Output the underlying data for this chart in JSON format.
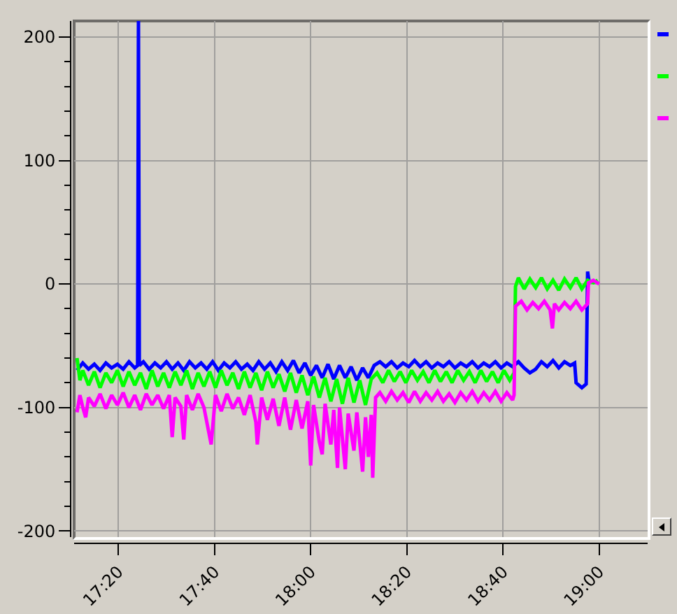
{
  "chart_data": {
    "type": "line",
    "xlim": [
      17.18,
      19.168
    ],
    "xticks": [
      {
        "value": 17.333,
        "label": "17:20"
      },
      {
        "value": 17.667,
        "label": "17:40"
      },
      {
        "value": 18,
        "label": "18:00"
      },
      {
        "value": 18.333,
        "label": "18:20"
      },
      {
        "value": 18.667,
        "label": "18:40"
      },
      {
        "value": 19,
        "label": "19:00"
      }
    ],
    "ylim": [
      -205,
      213
    ],
    "yticks": [
      -200,
      {
        "value": -180,
        "label": null
      },
      {
        "value": -160,
        "label": null
      },
      {
        "value": -140,
        "label": null
      },
      {
        "value": -120,
        "label": null
      },
      -100,
      {
        "value": -80,
        "label": null
      },
      {
        "value": -60,
        "label": null
      },
      {
        "value": -40,
        "label": null
      },
      {
        "value": -20,
        "label": null
      },
      0,
      {
        "value": 20,
        "label": null
      },
      {
        "value": 40,
        "label": null
      },
      {
        "value": 60,
        "label": null
      },
      {
        "value": 80,
        "label": null
      },
      100,
      {
        "value": 120,
        "label": null
      },
      {
        "value": 140,
        "label": null
      },
      {
        "value": 160,
        "label": null
      },
      {
        "value": 180,
        "label": null
      },
      200
    ],
    "grid": true,
    "series": [
      {
        "color": "#0000ff",
        "x": [
          17.19,
          17.21,
          17.23,
          17.25,
          17.27,
          17.29,
          17.31,
          17.33,
          17.35,
          17.37,
          17.39,
          17.4,
          17.403,
          17.406,
          17.42,
          17.44,
          17.46,
          17.48,
          17.5,
          17.52,
          17.54,
          17.56,
          17.58,
          17.6,
          17.62,
          17.64,
          17.66,
          17.68,
          17.7,
          17.72,
          17.74,
          17.76,
          17.78,
          17.8,
          17.82,
          17.84,
          17.86,
          17.88,
          17.9,
          17.92,
          17.94,
          17.96,
          17.98,
          18,
          18.02,
          18.04,
          18.06,
          18.08,
          18.1,
          18.12,
          18.14,
          18.16,
          18.18,
          18.2,
          18.22,
          18.24,
          18.26,
          18.28,
          18.3,
          18.32,
          18.34,
          18.36,
          18.38,
          18.4,
          18.42,
          18.44,
          18.46,
          18.48,
          18.5,
          18.52,
          18.54,
          18.56,
          18.58,
          18.6,
          18.62,
          18.64,
          18.66,
          18.68,
          18.7,
          18.72,
          18.74,
          18.76,
          18.78,
          18.8,
          18.82,
          18.84,
          18.86,
          18.88,
          18.9,
          18.915,
          18.92,
          18.94,
          18.955,
          18.96,
          18.965
        ],
        "values": [
          -70,
          -64,
          -69,
          -65,
          -70,
          -64,
          -68,
          -65,
          -69,
          -63,
          -68,
          -66,
          213,
          -66,
          -63,
          -69,
          -64,
          -68,
          -63,
          -69,
          -64,
          -70,
          -63,
          -68,
          -64,
          -69,
          -63,
          -70,
          -64,
          -68,
          -63,
          -69,
          -65,
          -70,
          -63,
          -69,
          -64,
          -71,
          -63,
          -70,
          -62,
          -72,
          -64,
          -74,
          -66,
          -76,
          -65,
          -77,
          -66,
          -76,
          -67,
          -78,
          -68,
          -76,
          -66,
          -63,
          -67,
          -63,
          -68,
          -64,
          -67,
          -62,
          -67,
          -63,
          -68,
          -64,
          -67,
          -63,
          -68,
          -64,
          -67,
          -63,
          -68,
          -64,
          -67,
          -63,
          -68,
          -64,
          -67,
          -63,
          -68,
          -72,
          -69,
          -63,
          -67,
          -62,
          -68,
          -63,
          -66,
          -64,
          -80,
          -84,
          -81,
          10,
          2
        ]
      },
      {
        "color": "#00ff00",
        "x": [
          17.19,
          17.2,
          17.21,
          17.23,
          17.25,
          17.27,
          17.29,
          17.31,
          17.33,
          17.35,
          17.37,
          17.39,
          17.41,
          17.43,
          17.45,
          17.47,
          17.49,
          17.51,
          17.53,
          17.55,
          17.57,
          17.59,
          17.61,
          17.63,
          17.65,
          17.67,
          17.69,
          17.71,
          17.73,
          17.75,
          17.77,
          17.79,
          17.81,
          17.83,
          17.85,
          17.87,
          17.89,
          17.91,
          17.93,
          17.95,
          17.97,
          17.99,
          18.01,
          18.03,
          18.05,
          18.07,
          18.09,
          18.11,
          18.13,
          18.15,
          18.17,
          18.19,
          18.21,
          18.23,
          18.25,
          18.27,
          18.29,
          18.31,
          18.33,
          18.35,
          18.37,
          18.39,
          18.41,
          18.43,
          18.45,
          18.47,
          18.49,
          18.51,
          18.53,
          18.55,
          18.57,
          18.59,
          18.61,
          18.63,
          18.65,
          18.67,
          18.69,
          18.705,
          18.71,
          18.72,
          18.74,
          18.76,
          18.78,
          18.8,
          18.82,
          18.84,
          18.86,
          18.88,
          18.9,
          18.92,
          18.94,
          18.96,
          18.98,
          18.995
        ],
        "values": [
          -60,
          -78,
          -70,
          -82,
          -71,
          -84,
          -72,
          -80,
          -70,
          -83,
          -71,
          -82,
          -72,
          -85,
          -70,
          -83,
          -72,
          -84,
          -71,
          -82,
          -70,
          -85,
          -72,
          -83,
          -71,
          -84,
          -70,
          -82,
          -72,
          -85,
          -71,
          -84,
          -72,
          -86,
          -71,
          -84,
          -73,
          -87,
          -72,
          -88,
          -74,
          -90,
          -75,
          -92,
          -76,
          -95,
          -77,
          -97,
          -76,
          -96,
          -78,
          -98,
          -77,
          -72,
          -80,
          -70,
          -79,
          -71,
          -80,
          -70,
          -78,
          -71,
          -80,
          -70,
          -79,
          -71,
          -80,
          -70,
          -78,
          -71,
          -80,
          -70,
          -79,
          -71,
          -80,
          -70,
          -78,
          -72,
          -2,
          5,
          -4,
          4,
          -3,
          5,
          -4,
          3,
          -5,
          4,
          -3,
          5,
          -4,
          3,
          1,
          3
        ]
      },
      {
        "color": "#ff00ff",
        "x": [
          17.19,
          17.2,
          17.21,
          17.22,
          17.23,
          17.25,
          17.27,
          17.29,
          17.31,
          17.33,
          17.35,
          17.37,
          17.39,
          17.41,
          17.43,
          17.45,
          17.47,
          17.49,
          17.51,
          17.52,
          17.53,
          17.55,
          17.56,
          17.57,
          17.59,
          17.61,
          17.63,
          17.655,
          17.67,
          17.69,
          17.71,
          17.73,
          17.75,
          17.77,
          17.79,
          17.81,
          17.815,
          17.83,
          17.85,
          17.87,
          17.89,
          17.91,
          17.93,
          17.95,
          17.97,
          17.99,
          18,
          18.01,
          18.03,
          18.04,
          18.05,
          18.07,
          18.08,
          18.093,
          18.1,
          18.12,
          18.13,
          18.15,
          18.16,
          18.18,
          18.19,
          18.2,
          18.21,
          18.215,
          18.225,
          18.24,
          18.26,
          18.28,
          18.3,
          18.32,
          18.34,
          18.36,
          18.38,
          18.4,
          18.42,
          18.44,
          18.46,
          18.48,
          18.5,
          18.52,
          18.54,
          18.56,
          18.58,
          18.6,
          18.62,
          18.64,
          18.66,
          18.68,
          18.7,
          18.705,
          18.71,
          18.73,
          18.75,
          18.77,
          18.79,
          18.81,
          18.83,
          18.838,
          18.845,
          18.86,
          18.88,
          18.9,
          18.92,
          18.94,
          18.96,
          18.963,
          18.98,
          19
        ],
        "values": [
          -104,
          -90,
          -100,
          -108,
          -92,
          -99,
          -89,
          -101,
          -90,
          -98,
          -88,
          -100,
          -90,
          -102,
          -89,
          -98,
          -90,
          -101,
          -90,
          -124,
          -92,
          -99,
          -126,
          -90,
          -102,
          -89,
          -100,
          -130,
          -90,
          -103,
          -89,
          -101,
          -92,
          -106,
          -90,
          -112,
          -130,
          -92,
          -110,
          -93,
          -115,
          -92,
          -118,
          -94,
          -117,
          -95,
          -147,
          -98,
          -128,
          -138,
          -97,
          -130,
          -102,
          -149,
          -100,
          -150,
          -105,
          -135,
          -104,
          -152,
          -108,
          -140,
          -106,
          -157,
          -92,
          -88,
          -95,
          -87,
          -94,
          -88,
          -96,
          -87,
          -95,
          -88,
          -94,
          -87,
          -95,
          -89,
          -96,
          -88,
          -94,
          -87,
          -95,
          -88,
          -94,
          -87,
          -95,
          -88,
          -94,
          -90,
          -18,
          -14,
          -21,
          -15,
          -20,
          -14,
          -21,
          -36,
          -16,
          -21,
          -15,
          -20,
          -14,
          -21,
          -16,
          1,
          3,
          0
        ]
      }
    ]
  }
}
